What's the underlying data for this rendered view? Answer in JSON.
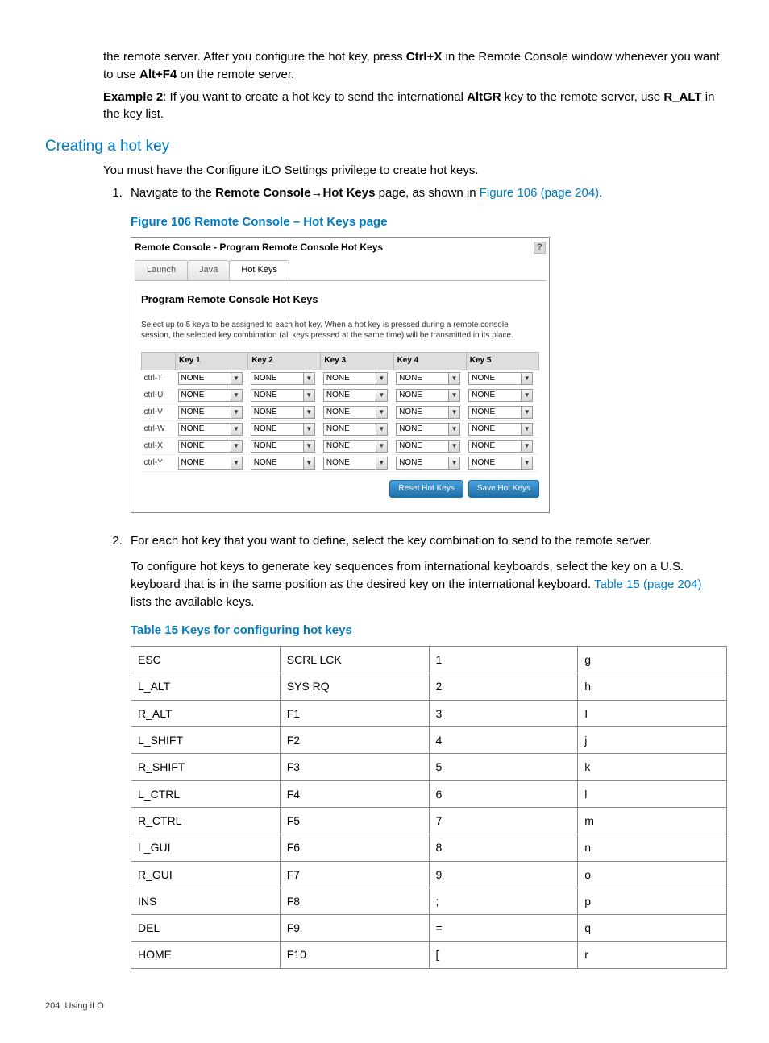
{
  "intro": {
    "p1_a": "the remote server. After you configure the hot key, press ",
    "p1_ctrlx": "Ctrl+X",
    "p1_b": " in the Remote Console window whenever you want to use ",
    "p1_altf4": "Alt+F4",
    "p1_c": " on the remote server.",
    "p2_ex": "Example 2",
    "p2_a": ": If you want to create a hot key to send the international ",
    "p2_altgr": "AltGR",
    "p2_b": " key to the remote server, use ",
    "p2_ralt": "R_ALT",
    "p2_c": " in the key list."
  },
  "section_title": "Creating a hot key",
  "priv_text": "You must have the Configure iLO Settings privilege to create hot keys.",
  "step1_a": "Navigate to the ",
  "step1_rc": "Remote Console",
  "step1_arrow": "→",
  "step1_hk": "Hot Keys",
  "step1_b": " page, as shown in ",
  "step1_link": "Figure 106 (page 204)",
  "step1_c": ".",
  "fig_caption": "Figure 106 Remote Console – Hot Keys page",
  "panel": {
    "title": "Remote Console - Program Remote Console Hot Keys",
    "help": "?",
    "tabs": [
      "Launch",
      "Java",
      "Hot Keys"
    ],
    "active_tab": 2,
    "heading": "Program Remote Console Hot Keys",
    "instr": "Select up to 5 keys to be assigned to each hot key. When a hot key is pressed during a remote console session, the selected key combination (all keys pressed at the same time) will be transmitted in its place.",
    "cols": [
      "",
      "Key 1",
      "Key 2",
      "Key 3",
      "Key 4",
      "Key 5"
    ],
    "rows": [
      "ctrl-T",
      "ctrl-U",
      "ctrl-V",
      "ctrl-W",
      "ctrl-X",
      "ctrl-Y"
    ],
    "cell_value": "NONE",
    "btn_reset": "Reset Hot Keys",
    "btn_save": "Save Hot Keys"
  },
  "step2_p1": "For each hot key that you want to define, select the key combination to send to the remote server.",
  "step2_p2a": "To configure hot keys to generate key sequences from international keyboards, select the key on a U.S. keyboard that is in the same position as the desired key on the international keyboard. ",
  "step2_link": "Table 15 (page 204)",
  "step2_p2b": " lists the available keys.",
  "tbl_caption": "Table 15 Keys for configuring hot keys",
  "keys_table": [
    [
      "ESC",
      "SCRL LCK",
      "1",
      "g"
    ],
    [
      "L_ALT",
      "SYS RQ",
      "2",
      "h"
    ],
    [
      "R_ALT",
      "F1",
      "3",
      "I"
    ],
    [
      "L_SHIFT",
      "F2",
      "4",
      "j"
    ],
    [
      "R_SHIFT",
      "F3",
      "5",
      "k"
    ],
    [
      "L_CTRL",
      "F4",
      "6",
      "l"
    ],
    [
      "R_CTRL",
      "F5",
      "7",
      "m"
    ],
    [
      "L_GUI",
      "F6",
      "8",
      "n"
    ],
    [
      "R_GUI",
      "F7",
      "9",
      "o"
    ],
    [
      "INS",
      "F8",
      ";",
      "p"
    ],
    [
      "DEL",
      "F9",
      "=",
      "q"
    ],
    [
      "HOME",
      "F10",
      "[",
      "r"
    ]
  ],
  "footer_page": "204",
  "footer_text": "Using iLO"
}
